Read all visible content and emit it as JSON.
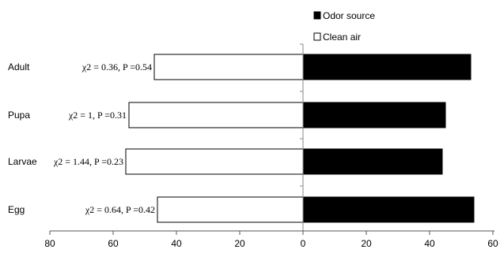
{
  "chart_data": {
    "type": "bar",
    "orientation": "horizontal",
    "categories": [
      "Adult",
      "Pupa",
      "Larvae",
      "Egg"
    ],
    "series": [
      {
        "name": "Odor source",
        "color": "#000000",
        "direction": "positive",
        "values": [
          53,
          45,
          44,
          54
        ]
      },
      {
        "name": "Clean air",
        "color": "#ffffff",
        "direction": "negative",
        "values": [
          47,
          55,
          56,
          46
        ]
      }
    ],
    "annotations": [
      "χ2 = 0.36, P =0.54",
      "χ2 = 1, P =0.31",
      "χ2 = 1.44, P =0.23",
      "χ2 = 0.64, P =0.42"
    ],
    "x_ticks": [
      "80",
      "60",
      "40",
      "20",
      "0",
      "20",
      "40",
      "60"
    ],
    "xlim": [
      -80,
      60
    ],
    "grid": false,
    "legend_position": "top-right"
  }
}
